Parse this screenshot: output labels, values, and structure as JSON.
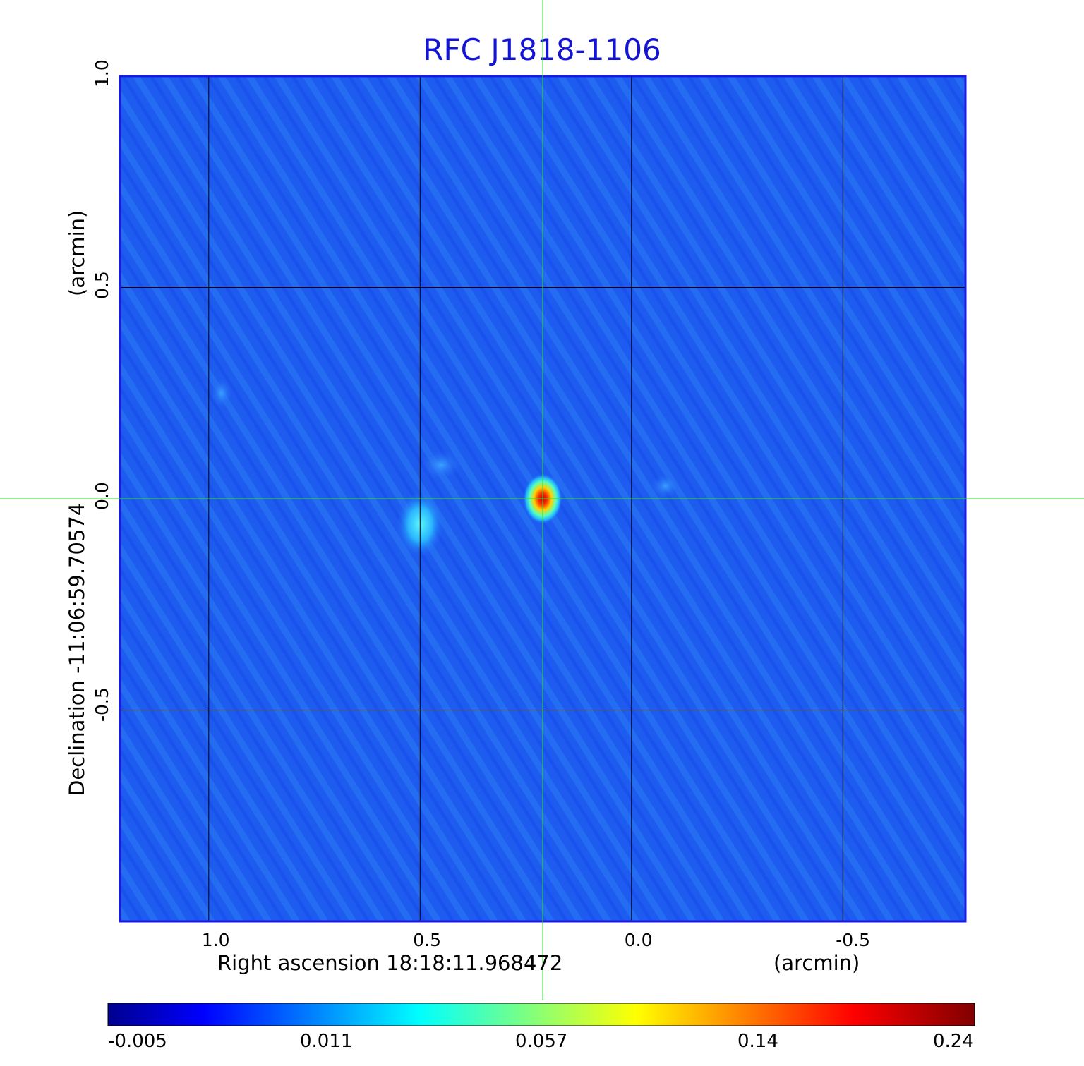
{
  "chart_data": {
    "type": "heatmap",
    "title": "RFC J1818-1106",
    "colormap": "jet",
    "xlabel": "Right ascension  18:18:11.968472",
    "xunit": "(arcmin)",
    "ylabel": "Declination  -11:06:59.70574",
    "yunit": "(arcmin)",
    "xlim": [
      1.21,
      -0.79
    ],
    "ylim": [
      -1.0,
      1.0
    ],
    "x_ticks": [
      "1.0",
      "0.5",
      "0.0",
      "-0.5"
    ],
    "x_tick_values": [
      1.0,
      0.5,
      0.0,
      -0.5
    ],
    "y_ticks": [
      "1.0",
      "0.5",
      "0.0",
      "-0.5"
    ],
    "y_tick_values": [
      1.0,
      0.5,
      0.0,
      -0.5
    ],
    "grid": true,
    "crosshair": [
      0.21,
      0.0
    ],
    "colorbar_ticks": [
      "-0.005",
      "0.011",
      "0.057",
      "0.14",
      "0.24"
    ],
    "colorbar_range": [
      -0.005,
      0.24
    ],
    "sources": [
      {
        "x": 0.21,
        "y": 0.0,
        "peak": 0.24
      },
      {
        "x": 0.5,
        "y": -0.06,
        "peak": 0.05
      }
    ],
    "colors": {
      "title": "#1414d4",
      "grid": "#000000",
      "crosshair": "#33dd33",
      "frame": "#1a1ae8"
    }
  }
}
